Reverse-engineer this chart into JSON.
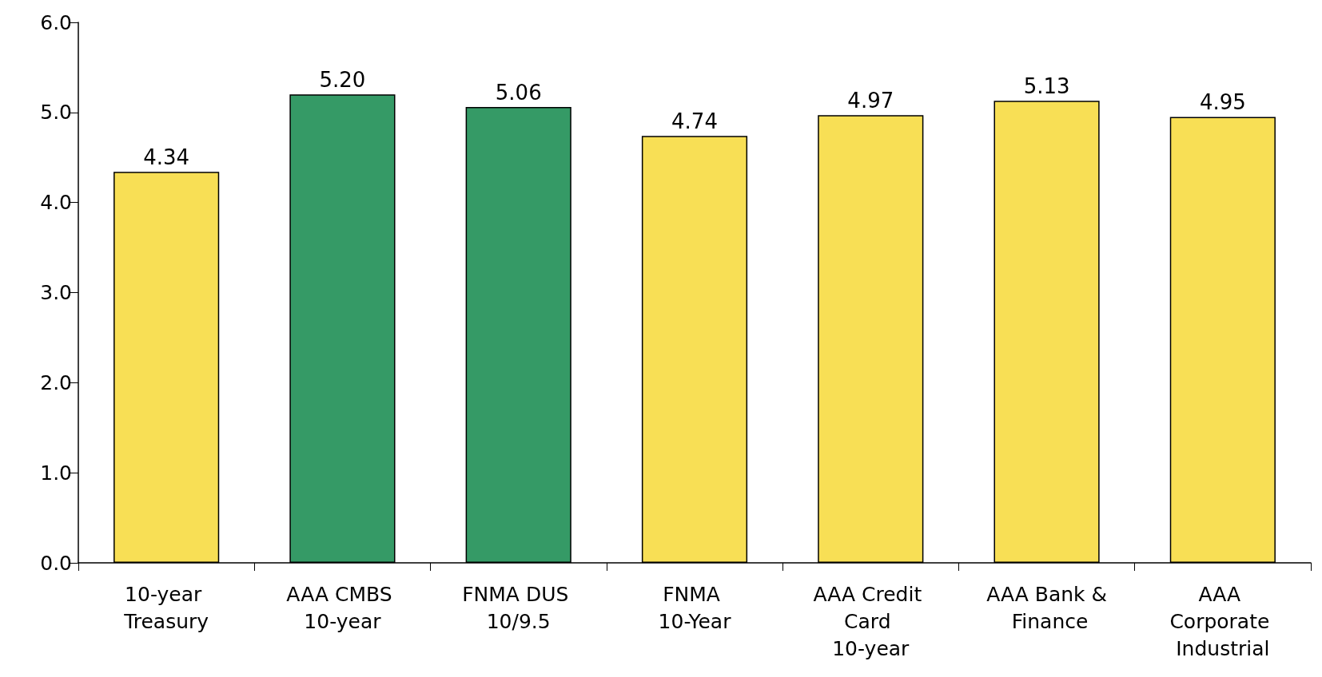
{
  "chart_data": {
    "type": "bar",
    "categories": [
      "10-year Treasury",
      "AAA CMBS 10-year",
      "FNMA DUS 10/9.5",
      "FNMA 10-Year",
      "AAA Credit Card 10-year",
      "AAA Bank & Finance",
      "AAA Corporate Industrial"
    ],
    "values": [
      4.34,
      5.2,
      5.06,
      4.74,
      4.97,
      5.13,
      4.95
    ],
    "value_labels": [
      "4.34",
      "5.20",
      "5.06",
      "4.74",
      "4.97",
      "5.13",
      "4.95"
    ],
    "colors": [
      "#f8df55",
      "#359a66",
      "#359a66",
      "#f8df55",
      "#f8df55",
      "#f8df55",
      "#f8df55"
    ],
    "ylim": [
      0,
      6
    ],
    "yticks": [
      {
        "value": 0,
        "label": "0.0"
      },
      {
        "value": 1,
        "label": "1.0"
      },
      {
        "value": 2,
        "label": "2.0"
      },
      {
        "value": 3,
        "label": "3.0"
      },
      {
        "value": 4,
        "label": "4.0"
      },
      {
        "value": 5,
        "label": "5.0"
      },
      {
        "value": 6,
        "label": "6.0"
      }
    ],
    "grid": false
  }
}
